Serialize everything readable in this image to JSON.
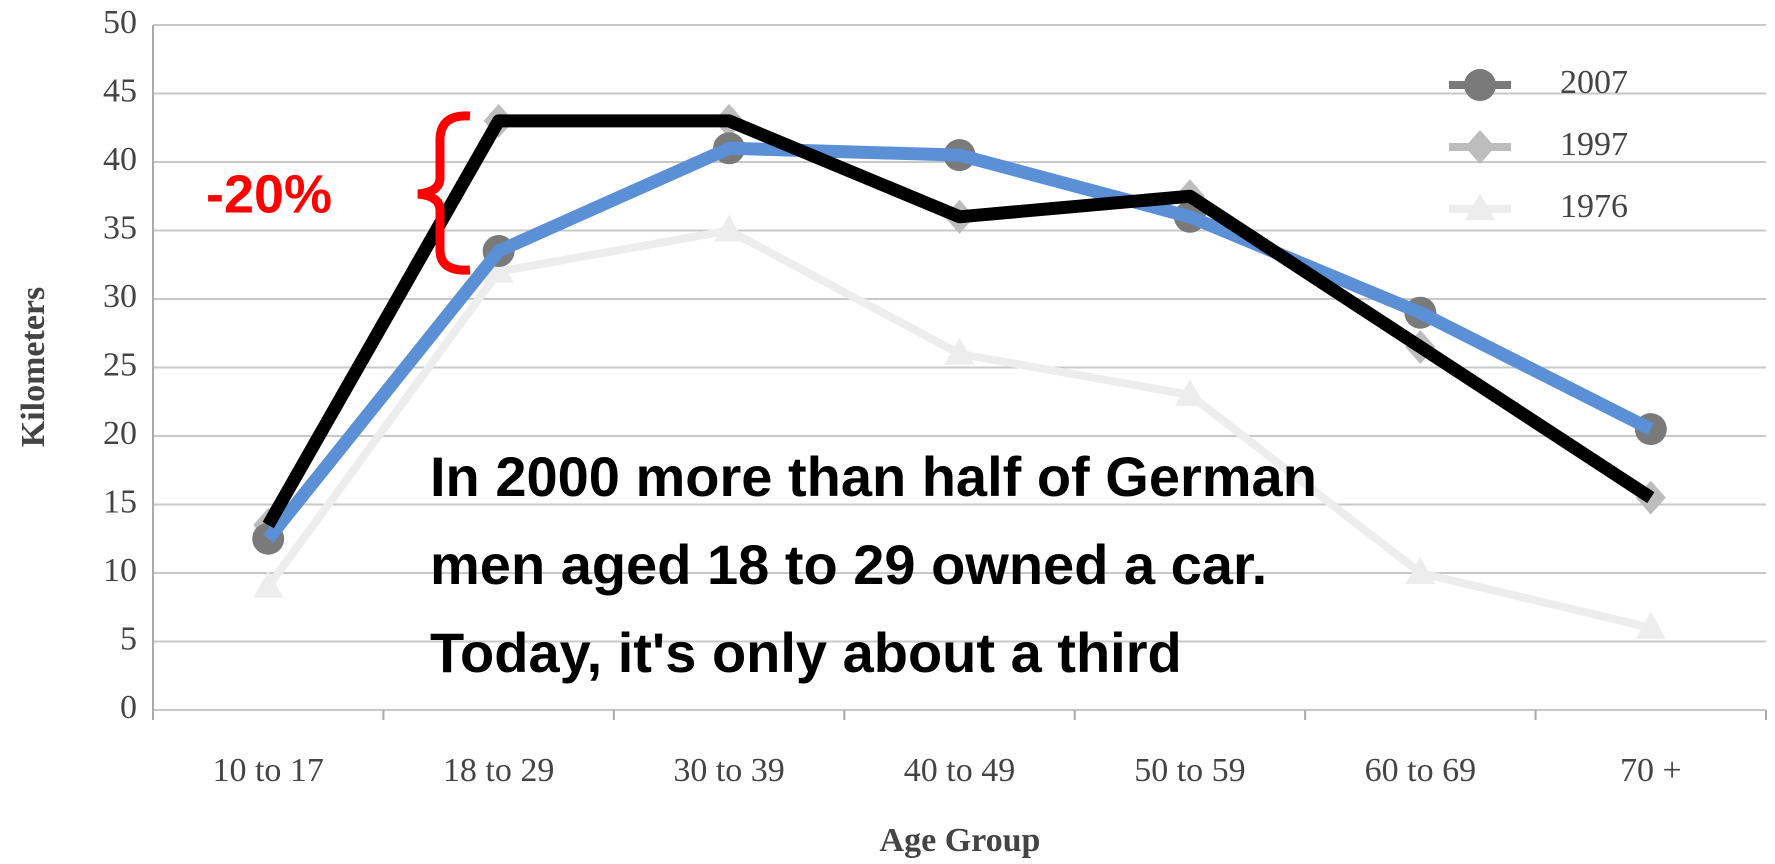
{
  "chart_data": {
    "type": "line",
    "ylabel": "Kilometers",
    "xlabel": "Age Group",
    "categories": [
      "10 to 17",
      "18 to 29",
      "30 to 39",
      "40 to 49",
      "50 to 59",
      "60 to 69",
      "70 +"
    ],
    "series": [
      {
        "name": "2007",
        "color": "#7a7a7a",
        "marker": "circle",
        "highlight_color": "#5b8fd6",
        "values": [
          12.5,
          33.5,
          41,
          40.5,
          36,
          29,
          20.5
        ]
      },
      {
        "name": "1997",
        "color": "#bdbdbd",
        "marker": "diamond",
        "highlight_color": "#000000",
        "values": [
          13.5,
          43,
          43,
          36,
          37.5,
          26.5,
          15.5
        ]
      },
      {
        "name": "1976",
        "color": "#ededed",
        "marker": "triangle",
        "values": [
          9,
          32,
          35,
          26,
          23,
          10,
          6
        ]
      }
    ],
    "ylim": [
      0,
      50
    ],
    "yticks": [
      0,
      5,
      10,
      15,
      20,
      25,
      30,
      35,
      40,
      45,
      50
    ],
    "grid": true,
    "legend": "upper right",
    "annotations": [
      "-20%",
      "In 2000 more than half of German",
      "men aged 18 to 29 owned a car.",
      "Today, it's only about a third"
    ]
  }
}
